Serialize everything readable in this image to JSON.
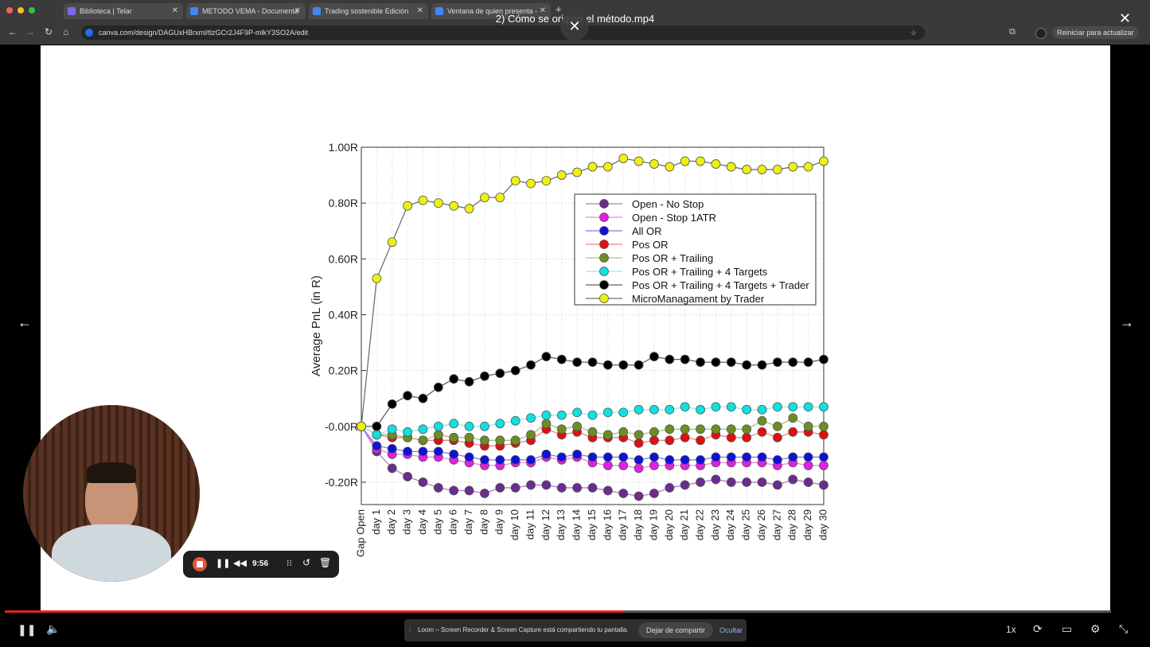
{
  "browser": {
    "tabs": [
      {
        "title": "Biblioteca | Telar",
        "color": "#7b68ee"
      },
      {
        "title": "METODO VEMA - Documenta",
        "color": "#4285f4"
      },
      {
        "title": "Trading sostenible Edición",
        "color": "#4285f4"
      },
      {
        "title": "Ventana de quien presenta -",
        "color": "#4285f4"
      }
    ],
    "url": "canva.com/design/DAGUxHBrxml/tlzGCr2J4F9P-mlkY3SO2A/edit",
    "update_button": "Reiniciar para actualizar"
  },
  "video": {
    "title": "2) Cómo se originó el método.mp4",
    "speed": "1x"
  },
  "loom": {
    "timer": "9:56",
    "notification": "Loom – Screen Recorder & Screen Capture está compartiendo tu pantalla.",
    "stop_share": "Dejar de compartir",
    "hide": "Ocultar"
  },
  "progress_fraction": 0.56,
  "chart_data": {
    "type": "line",
    "ylabel": "Average PnL (in R)",
    "xlabel": "",
    "ylim": [
      -0.28,
      1.0
    ],
    "yticks": [
      1.0,
      0.8,
      0.6,
      0.4,
      0.2,
      0.0,
      -0.2
    ],
    "ytick_labels": [
      "1.00R",
      "0.80R",
      "0.60R",
      "0.40R",
      "0.20R",
      "-0.00R",
      "-0.20R"
    ],
    "categories": [
      "Gap Open",
      "day 1",
      "day 2",
      "day 3",
      "day 4",
      "day 5",
      "day 6",
      "day 7",
      "day 8",
      "day 9",
      "day 10",
      "day 11",
      "day 12",
      "day 13",
      "day 14",
      "day 15",
      "day 16",
      "day 17",
      "day 18",
      "day 19",
      "day 20",
      "day 21",
      "day 22",
      "day 23",
      "day 24",
      "day 25",
      "day 26",
      "day 27",
      "day 28",
      "day 29",
      "day 30"
    ],
    "legend_position": "top-right",
    "series": [
      {
        "name": "Open - No Stop",
        "color": "#6a2c8f",
        "line": "#b07cc8",
        "values": [
          0.0,
          -0.09,
          -0.15,
          -0.18,
          -0.2,
          -0.22,
          -0.23,
          -0.23,
          -0.24,
          -0.22,
          -0.22,
          -0.21,
          -0.21,
          -0.22,
          -0.22,
          -0.22,
          -0.23,
          -0.24,
          -0.25,
          -0.24,
          -0.22,
          -0.21,
          -0.2,
          -0.19,
          -0.2,
          -0.2,
          -0.2,
          -0.21,
          -0.19,
          -0.2,
          -0.21
        ]
      },
      {
        "name": "Open - Stop 1ATR",
        "color": "#e31ee3",
        "line": "#f080f0",
        "values": [
          0.0,
          -0.08,
          -0.1,
          -0.1,
          -0.11,
          -0.11,
          -0.12,
          -0.13,
          -0.14,
          -0.14,
          -0.13,
          -0.13,
          -0.11,
          -0.12,
          -0.11,
          -0.13,
          -0.14,
          -0.14,
          -0.15,
          -0.14,
          -0.14,
          -0.14,
          -0.14,
          -0.13,
          -0.13,
          -0.13,
          -0.13,
          -0.14,
          -0.13,
          -0.14,
          -0.14
        ]
      },
      {
        "name": "All OR",
        "color": "#1010d8",
        "line": "#7a7ae8",
        "values": [
          0.0,
          -0.07,
          -0.08,
          -0.09,
          -0.09,
          -0.09,
          -0.1,
          -0.11,
          -0.12,
          -0.12,
          -0.12,
          -0.12,
          -0.1,
          -0.11,
          -0.1,
          -0.11,
          -0.11,
          -0.11,
          -0.12,
          -0.11,
          -0.12,
          -0.12,
          -0.12,
          -0.11,
          -0.11,
          -0.11,
          -0.11,
          -0.12,
          -0.11,
          -0.11,
          -0.11
        ]
      },
      {
        "name": "Pos OR",
        "color": "#e01010",
        "line": "#f08080",
        "values": [
          0.0,
          -0.03,
          -0.04,
          -0.04,
          -0.05,
          -0.05,
          -0.05,
          -0.06,
          -0.07,
          -0.07,
          -0.06,
          -0.05,
          -0.01,
          -0.03,
          -0.02,
          -0.04,
          -0.04,
          -0.04,
          -0.06,
          -0.05,
          -0.05,
          -0.04,
          -0.05,
          -0.03,
          -0.04,
          -0.04,
          -0.02,
          -0.04,
          -0.02,
          -0.02,
          -0.03
        ]
      },
      {
        "name": "Pos OR + Trailing",
        "color": "#6b8e23",
        "line": "#b0c080",
        "values": [
          0.0,
          -0.03,
          -0.03,
          -0.04,
          -0.05,
          -0.03,
          -0.04,
          -0.04,
          -0.05,
          -0.05,
          -0.05,
          -0.03,
          0.01,
          -0.01,
          0.0,
          -0.02,
          -0.03,
          -0.02,
          -0.03,
          -0.02,
          -0.01,
          -0.01,
          -0.01,
          -0.01,
          -0.01,
          -0.01,
          0.02,
          0.0,
          0.03,
          0.0,
          0.0
        ]
      },
      {
        "name": "Pos OR + Trailing + 4 Targets",
        "color": "#10e0e0",
        "line": "#80f0f0",
        "values": [
          0.0,
          -0.03,
          -0.01,
          -0.02,
          -0.01,
          0.0,
          0.01,
          0.0,
          0.0,
          0.01,
          0.02,
          0.03,
          0.04,
          0.04,
          0.05,
          0.04,
          0.05,
          0.05,
          0.06,
          0.06,
          0.06,
          0.07,
          0.06,
          0.07,
          0.07,
          0.06,
          0.06,
          0.07,
          0.07,
          0.07,
          0.07
        ]
      },
      {
        "name": "Pos OR + Trailing + 4 Targets + Trader",
        "color": "#000000",
        "line": "#606060",
        "values": [
          0.0,
          0.0,
          0.08,
          0.11,
          0.1,
          0.14,
          0.17,
          0.16,
          0.18,
          0.19,
          0.2,
          0.22,
          0.25,
          0.24,
          0.23,
          0.23,
          0.22,
          0.22,
          0.22,
          0.25,
          0.24,
          0.24,
          0.23,
          0.23,
          0.23,
          0.22,
          0.22,
          0.23,
          0.23,
          0.23,
          0.24
        ]
      },
      {
        "name": "MicroManagament by Trader",
        "color": "#f0f010",
        "line": "#707070",
        "values": [
          0.0,
          0.53,
          0.66,
          0.79,
          0.81,
          0.8,
          0.79,
          0.78,
          0.82,
          0.82,
          0.88,
          0.87,
          0.88,
          0.9,
          0.91,
          0.93,
          0.93,
          0.96,
          0.95,
          0.94,
          0.93,
          0.95,
          0.95,
          0.94,
          0.93,
          0.92,
          0.92,
          0.92,
          0.93,
          0.93,
          0.95
        ]
      }
    ]
  }
}
